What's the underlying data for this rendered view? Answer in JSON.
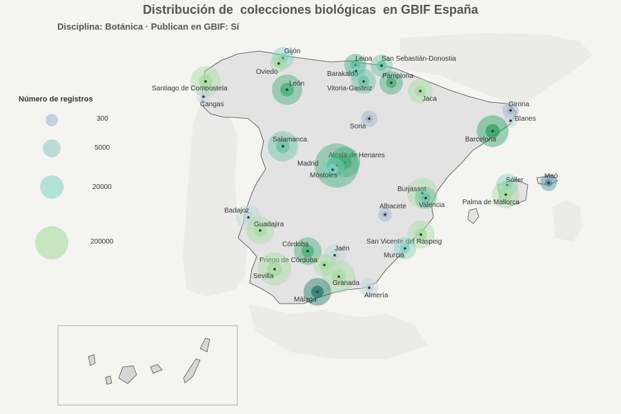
{
  "title": "Distribución de  colecciones biológicas  en GBIF España",
  "subtitle": "Disciplina: Botánica · Publican en GBIF: Sí",
  "legend": {
    "title": "Número de registros",
    "items": [
      {
        "label": "300",
        "color": "#9fb3c8"
      },
      {
        "label": "5000",
        "color": "#8fc6c0"
      },
      {
        "label": "20000",
        "color": "#7fd3c4"
      },
      {
        "label": "200000",
        "color": "#a6dba0"
      }
    ]
  },
  "colors": {
    "land": "#e3e3e3",
    "neighbor": "#ebebea",
    "sea": "#f4f4f1",
    "border": "#444444",
    "inset_frame": "#aaaaaa"
  },
  "cities": [
    {
      "name": "Gijón",
      "color": "#7fd3c4"
    },
    {
      "name": "Oviedo",
      "color": "#a6dba0"
    },
    {
      "name": "Leioa",
      "color": "#41ae76"
    },
    {
      "name": "San Sebastián-Donostia",
      "color": "#66c2a4"
    },
    {
      "name": "Barakaldo",
      "color": "#7fd3c4"
    },
    {
      "name": "Pamplona",
      "color": "#41ae76"
    },
    {
      "name": "Vitoria-Gasteiz",
      "color": "#66c2a4"
    },
    {
      "name": "Santiago de Compostela",
      "color": "#a6dba0"
    },
    {
      "name": "León",
      "color": "#41ae76"
    },
    {
      "name": "Cangas",
      "color": "#bcd5d8"
    },
    {
      "name": "Jaca",
      "color": "#a6dba0"
    },
    {
      "name": "Girona",
      "color": "#9fb3c8"
    },
    {
      "name": "Blanes",
      "color": "#bcd5d8"
    },
    {
      "name": "Soria",
      "color": "#9fb3c8"
    },
    {
      "name": "Barcelona",
      "color": "#2ca25f"
    },
    {
      "name": "Salamanca",
      "color": "#66c2a4"
    },
    {
      "name": "Alcalá de Henares",
      "color": "#41ae76"
    },
    {
      "name": "Madrid",
      "color": "#41ae76"
    },
    {
      "name": "Móstoles",
      "color": "#7fd3c4"
    },
    {
      "name": "Sóller",
      "color": "#7fd3c4"
    },
    {
      "name": "Maó",
      "color": "#4f8fa3"
    },
    {
      "name": "Burjassot",
      "color": "#a6dba0"
    },
    {
      "name": "Valencia",
      "color": "#66c2a4"
    },
    {
      "name": "Palma de Mallorca",
      "color": "#a6dba0"
    },
    {
      "name": "Albacete",
      "color": "#9fb3c8"
    },
    {
      "name": "Badajoz",
      "color": "#bcd5d8"
    },
    {
      "name": "Guadajira",
      "color": "#a6dba0"
    },
    {
      "name": "San Vicente del Raspeig",
      "color": "#a6dba0"
    },
    {
      "name": "Murcia",
      "color": "#7fd3c4"
    },
    {
      "name": "Córdoba",
      "color": "#41ae76"
    },
    {
      "name": "Jaén",
      "color": "#bcd5d8"
    },
    {
      "name": "Priego de Córdoba",
      "color": "#a6dba0"
    },
    {
      "name": "Sevilla",
      "color": "#a6dba0"
    },
    {
      "name": "Granada",
      "color": "#a6dba0"
    },
    {
      "name": "Almería",
      "color": "#bcd5d8"
    },
    {
      "name": "Málaga",
      "color": "#1f7a6a"
    }
  ]
}
